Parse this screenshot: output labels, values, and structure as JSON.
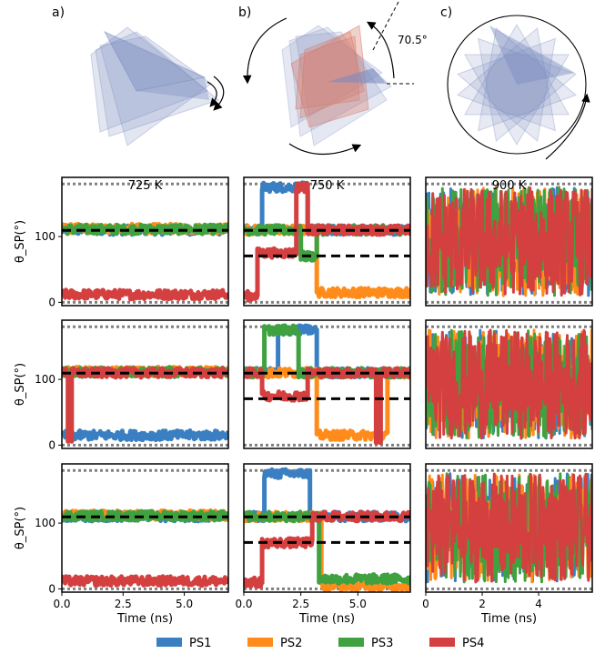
{
  "figure": {
    "panel_labels": [
      "a)",
      "b)",
      "c)"
    ],
    "angle_annotation": "70.5°",
    "column_titles": [
      "725 K",
      "750 K",
      "900 K"
    ],
    "ylabel": "θ_SP(°)",
    "xlabel": "Time (ns)",
    "colors": {
      "PS1": "#3a7fc1",
      "PS2": "#ff8c1a",
      "PS3": "#3fa13f",
      "PS4": "#d43f3f",
      "grid_dotted": "#808080",
      "polyhedron_blue": "#7b8bbf",
      "polyhedron_red": "#d77a6a"
    }
  },
  "chart_data": {
    "type": "line",
    "description": "3x3 grid of time series of θ_SP for four tetrahedra",
    "ylim": [
      -5,
      190
    ],
    "yticks": [
      0,
      100
    ],
    "reference_lines_dotted": [
      0,
      180
    ],
    "reference_lines_dashed": [
      109.5,
      70.5
    ],
    "columns": [
      {
        "title": "725 K",
        "xlim": [
          0,
          6.8
        ],
        "xticks": [
          0.0,
          2.5,
          5.0
        ],
        "xtick_labels": [
          "0.0",
          "2.5",
          "5.0"
        ],
        "dashed": [
          109.5
        ]
      },
      {
        "title": "750 K",
        "xlim": [
          0,
          7.3
        ],
        "xticks": [
          0.0,
          2.5,
          5.0
        ],
        "xtick_labels": [
          "0.0",
          "2.5",
          "5.0"
        ],
        "dashed": [
          109.5,
          70.5
        ]
      },
      {
        "title": "900 K",
        "xlim": [
          0,
          5.9
        ],
        "xticks": [
          0,
          2,
          4
        ],
        "xtick_labels": [
          "0",
          "2",
          "4"
        ],
        "dashed": []
      }
    ],
    "rows": [
      {
        "725 K": [
          {
            "name": "PS1",
            "segments": [
              [
                0,
                6.8,
                110
              ]
            ]
          },
          {
            "name": "PS2",
            "segments": [
              [
                0,
                6.8,
                112
              ]
            ]
          },
          {
            "name": "PS3",
            "segments": [
              [
                0,
                6.8,
                111
              ]
            ]
          },
          {
            "name": "PS4",
            "segments": [
              [
                0,
                6.8,
                12
              ]
            ]
          }
        ],
        "750 K": [
          {
            "name": "PS1",
            "segments": [
              [
                0,
                0.8,
                110
              ],
              [
                0.8,
                2.8,
                175
              ],
              [
                2.8,
                7.3,
                110
              ]
            ]
          },
          {
            "name": "PS2",
            "segments": [
              [
                0,
                3.2,
                110
              ],
              [
                3.2,
                7.3,
                15
              ]
            ]
          },
          {
            "name": "PS3",
            "segments": [
              [
                0,
                2.5,
                110
              ],
              [
                2.5,
                3.2,
                70
              ],
              [
                3.2,
                7.3,
                110
              ]
            ]
          },
          {
            "name": "PS4",
            "segments": [
              [
                0,
                0.6,
                10
              ],
              [
                0.6,
                2.3,
                75
              ],
              [
                2.3,
                2.8,
                175
              ],
              [
                2.8,
                7.3,
                110
              ]
            ]
          }
        ],
        "900 K": [
          {
            "name": "PS1",
            "segments": [
              [
                0,
                5.9,
                90
              ]
            ],
            "noisy": true
          },
          {
            "name": "PS2",
            "segments": [
              [
                0,
                5.9,
                90
              ]
            ],
            "noisy": true
          },
          {
            "name": "PS3",
            "segments": [
              [
                0,
                5.9,
                90
              ]
            ],
            "noisy": true
          },
          {
            "name": "PS4",
            "segments": [
              [
                0,
                5.9,
                90
              ]
            ],
            "noisy": true
          }
        ]
      },
      {
        "725 K": [
          {
            "name": "PS1",
            "segments": [
              [
                0,
                6.8,
                15
              ]
            ]
          },
          {
            "name": "PS2",
            "segments": [
              [
                0,
                6.8,
                112
              ]
            ]
          },
          {
            "name": "PS3",
            "segments": [
              [
                0,
                6.8,
                111
              ]
            ]
          },
          {
            "name": "PS4",
            "segments": [
              [
                0,
                0.25,
                110
              ],
              [
                0.25,
                0.4,
                10
              ],
              [
                0.4,
                6.8,
                110
              ]
            ]
          }
        ],
        "750 K": [
          {
            "name": "PS1",
            "segments": [
              [
                0,
                1.5,
                110
              ],
              [
                1.5,
                3.2,
                175
              ],
              [
                3.2,
                7.3,
                110
              ]
            ]
          },
          {
            "name": "PS2",
            "segments": [
              [
                0,
                3.2,
                110
              ],
              [
                3.2,
                6.3,
                15
              ],
              [
                6.3,
                7.3,
                110
              ]
            ]
          },
          {
            "name": "PS3",
            "segments": [
              [
                0,
                0.9,
                110
              ],
              [
                0.9,
                2.4,
                175
              ],
              [
                2.4,
                7.3,
                110
              ]
            ]
          },
          {
            "name": "PS4",
            "segments": [
              [
                0,
                0.8,
                110
              ],
              [
                0.8,
                2.8,
                75
              ],
              [
                2.8,
                5.8,
                110
              ],
              [
                5.8,
                6.0,
                10
              ],
              [
                6.0,
                7.3,
                110
              ]
            ]
          }
        ],
        "900 K": [
          {
            "name": "PS1",
            "segments": [
              [
                0,
                5.9,
                90
              ]
            ],
            "noisy": true
          },
          {
            "name": "PS2",
            "segments": [
              [
                0,
                5.9,
                90
              ]
            ],
            "noisy": true
          },
          {
            "name": "PS3",
            "segments": [
              [
                0,
                5.9,
                90
              ]
            ],
            "noisy": true
          },
          {
            "name": "PS4",
            "segments": [
              [
                0,
                5.9,
                90
              ]
            ],
            "noisy": true
          }
        ]
      },
      {
        "725 K": [
          {
            "name": "PS1",
            "segments": [
              [
                0,
                6.8,
                110
              ]
            ]
          },
          {
            "name": "PS2",
            "segments": [
              [
                0,
                6.8,
                112
              ]
            ]
          },
          {
            "name": "PS3",
            "segments": [
              [
                0,
                6.8,
                111
              ]
            ]
          },
          {
            "name": "PS4",
            "segments": [
              [
                0,
                6.8,
                12
              ]
            ]
          }
        ],
        "750 K": [
          {
            "name": "PS1",
            "segments": [
              [
                0,
                0.9,
                110
              ],
              [
                0.9,
                2.9,
                175
              ],
              [
                2.9,
                7.3,
                110
              ]
            ]
          },
          {
            "name": "PS2",
            "segments": [
              [
                0,
                3.4,
                110
              ],
              [
                3.4,
                7.3,
                5
              ]
            ]
          },
          {
            "name": "PS3",
            "segments": [
              [
                0,
                3.3,
                110
              ],
              [
                3.3,
                7.3,
                15
              ]
            ]
          },
          {
            "name": "PS4",
            "segments": [
              [
                0,
                0.8,
                10
              ],
              [
                0.8,
                3.0,
                70
              ],
              [
                3.0,
                7.3,
                110
              ]
            ]
          }
        ],
        "900 K": [
          {
            "name": "PS1",
            "segments": [
              [
                0,
                5.9,
                90
              ]
            ],
            "noisy": true
          },
          {
            "name": "PS2",
            "segments": [
              [
                0,
                5.9,
                90
              ]
            ],
            "noisy": true
          },
          {
            "name": "PS3",
            "segments": [
              [
                0,
                5.9,
                90
              ]
            ],
            "noisy": true
          },
          {
            "name": "PS4",
            "segments": [
              [
                0,
                5.9,
                90
              ]
            ],
            "noisy": true
          }
        ]
      }
    ],
    "legend": [
      "PS1",
      "PS2",
      "PS3",
      "PS4"
    ],
    "legend_location": "bottom-center"
  }
}
